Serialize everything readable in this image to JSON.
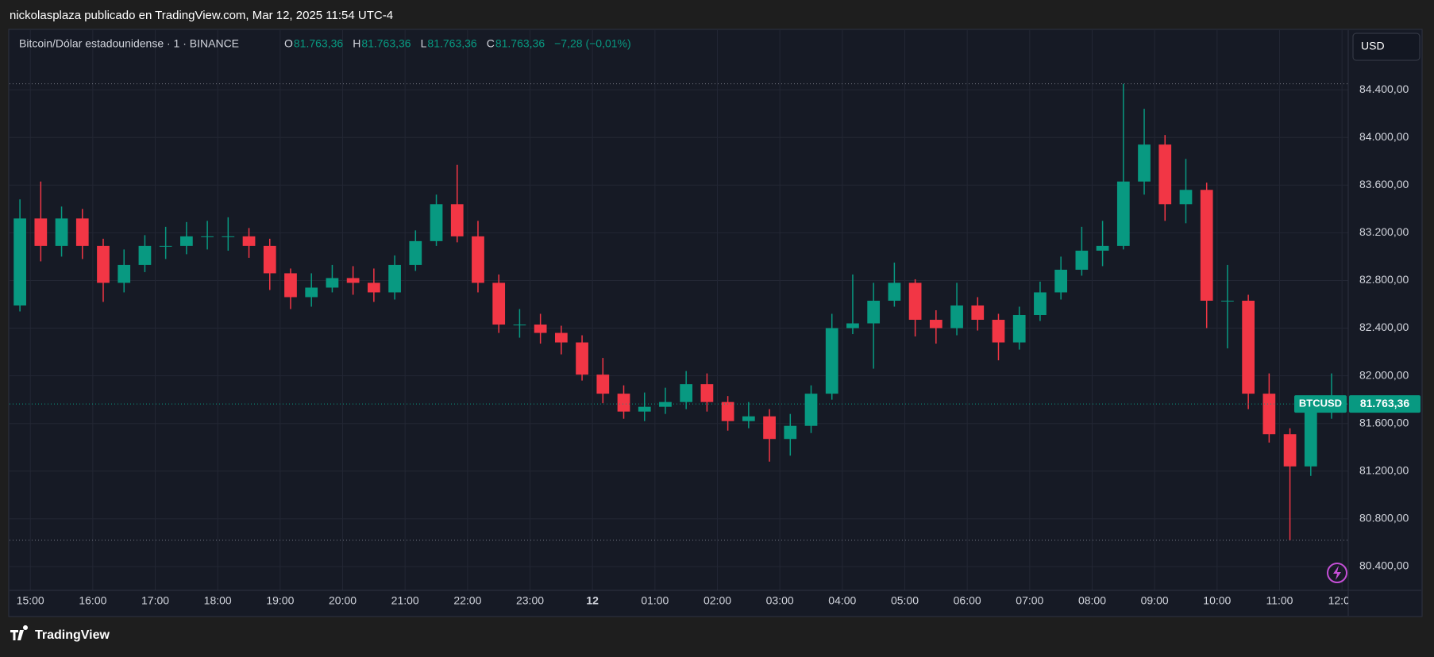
{
  "header": {
    "byline": "nickolasplaza publicado en TradingView.com, Mar 12, 2025 11:54 UTC-4"
  },
  "legend": {
    "symbol": "Bitcoin/Dólar estadounidense · 1 · BINANCE",
    "o_key": "O",
    "o": "81.763,36",
    "h_key": "H",
    "h": "81.763,36",
    "l_key": "L",
    "l": "81.763,36",
    "c_key": "C",
    "c": "81.763,36",
    "change": "−7,28 (−0,01%)"
  },
  "currency_button": "USD",
  "footer": {
    "brand": "TradingView"
  },
  "chart_data": {
    "type": "candlestick",
    "series": [
      {
        "name": "BTCUSD",
        "up_color": "#089981",
        "down_color": "#f23645",
        "open": [
          82590,
          83320,
          83090,
          83320,
          83090,
          82780,
          82930,
          83090,
          83090,
          83170,
          83170,
          83170,
          83090,
          82860,
          82660,
          82740,
          82820,
          82780,
          82700,
          82930,
          83130,
          83440,
          83170,
          82780,
          82430,
          82430,
          82360,
          82280,
          82010,
          81850,
          81700,
          81740,
          81780,
          81930,
          81780,
          81620,
          81660,
          81470,
          81580,
          81850,
          82400,
          82440,
          82630,
          82780,
          82470,
          82400,
          82590,
          82470,
          82280,
          82510,
          82700,
          82890,
          83050,
          83090,
          83630,
          83940,
          83440,
          83560,
          82630,
          82630,
          81850,
          81510,
          81240,
          81700
        ],
        "high": [
          83480,
          83630,
          83420,
          83400,
          83150,
          83060,
          83180,
          83250,
          83290,
          83300,
          83330,
          83240,
          83150,
          82900,
          82860,
          82930,
          82920,
          82900,
          83010,
          83220,
          83520,
          83770,
          83300,
          82850,
          82560,
          82520,
          82420,
          82340,
          82150,
          81920,
          81860,
          81900,
          82040,
          82020,
          81830,
          81780,
          81720,
          81680,
          81920,
          82520,
          82850,
          82780,
          82950,
          82810,
          82550,
          82780,
          82660,
          82520,
          82580,
          82790,
          83000,
          83250,
          83300,
          84450,
          84240,
          84020,
          83820,
          83620,
          82930,
          82680,
          82020,
          81560,
          81790,
          82020
        ],
        "low": [
          82540,
          82960,
          83000,
          82980,
          82620,
          82700,
          82870,
          82980,
          83020,
          83060,
          83050,
          82990,
          82720,
          82560,
          82580,
          82700,
          82680,
          82620,
          82640,
          82880,
          83090,
          83120,
          82700,
          82360,
          82320,
          82270,
          82180,
          81960,
          81770,
          81640,
          81620,
          81680,
          81720,
          81700,
          81540,
          81560,
          81280,
          81330,
          81520,
          81800,
          82350,
          82060,
          82580,
          82330,
          82270,
          82340,
          82380,
          82130,
          82220,
          82460,
          82640,
          82840,
          82920,
          83060,
          83520,
          83300,
          83280,
          82400,
          82230,
          81720,
          81440,
          80620,
          81160,
          81640
        ],
        "close": [
          83320,
          83090,
          83320,
          83090,
          82780,
          82930,
          83090,
          83090,
          83170,
          83170,
          83170,
          83090,
          82860,
          82660,
          82740,
          82820,
          82780,
          82700,
          82930,
          83130,
          83440,
          83170,
          82780,
          82430,
          82430,
          82360,
          82280,
          82010,
          81850,
          81700,
          81740,
          81780,
          81930,
          81780,
          81620,
          81660,
          81470,
          81580,
          81850,
          82400,
          82440,
          82630,
          82780,
          82470,
          82400,
          82590,
          82470,
          82280,
          82510,
          82700,
          82890,
          83050,
          83090,
          83630,
          83940,
          83440,
          83560,
          82630,
          82630,
          81850,
          81510,
          81240,
          81700,
          81763.36
        ]
      }
    ],
    "price_tag": {
      "name": "BTCUSD",
      "value": 81763.36,
      "label": "81.763,36",
      "color": "#089981"
    },
    "ylim": [
      80200,
      84900
    ],
    "yticks": [
      {
        "value": 80400,
        "label": "80.400,00"
      },
      {
        "value": 80800,
        "label": "80.800,00"
      },
      {
        "value": 81200,
        "label": "81.200,00"
      },
      {
        "value": 81600,
        "label": "81.600,00"
      },
      {
        "value": 82000,
        "label": "82.000,00"
      },
      {
        "value": 82400,
        "label": "82.400,00"
      },
      {
        "value": 82800,
        "label": "82.800,00"
      },
      {
        "value": 83200,
        "label": "83.200,00"
      },
      {
        "value": 83600,
        "label": "83.600,00"
      },
      {
        "value": 84000,
        "label": "84.000,00"
      },
      {
        "value": 84400,
        "label": "84.400,00"
      }
    ],
    "xlim": [
      -1,
      63.3
    ],
    "xticks": [
      {
        "value": 0,
        "label": "15:00"
      },
      {
        "value": 3,
        "label": "16:00"
      },
      {
        "value": 6,
        "label": "17:00"
      },
      {
        "value": 9,
        "label": "18:00"
      },
      {
        "value": 12,
        "label": "19:00"
      },
      {
        "value": 15,
        "label": "20:00"
      },
      {
        "value": 18,
        "label": "21:00"
      },
      {
        "value": 21,
        "label": "22:00"
      },
      {
        "value": 24,
        "label": "23:00"
      },
      {
        "value": 27,
        "label": "12"
      },
      {
        "value": 30,
        "label": "01:00"
      },
      {
        "value": 33,
        "label": "02:00"
      },
      {
        "value": 36,
        "label": "03:00"
      },
      {
        "value": 39,
        "label": "04:00"
      },
      {
        "value": 42,
        "label": "05:00"
      },
      {
        "value": 45,
        "label": "06:00"
      },
      {
        "value": 48,
        "label": "07:00"
      },
      {
        "value": 51,
        "label": "08:00"
      },
      {
        "value": 54,
        "label": "09:00"
      },
      {
        "value": 57,
        "label": "10:00"
      },
      {
        "value": 60,
        "label": "11:00"
      },
      {
        "value": 63,
        "label": "12:00"
      }
    ],
    "grid": true
  }
}
